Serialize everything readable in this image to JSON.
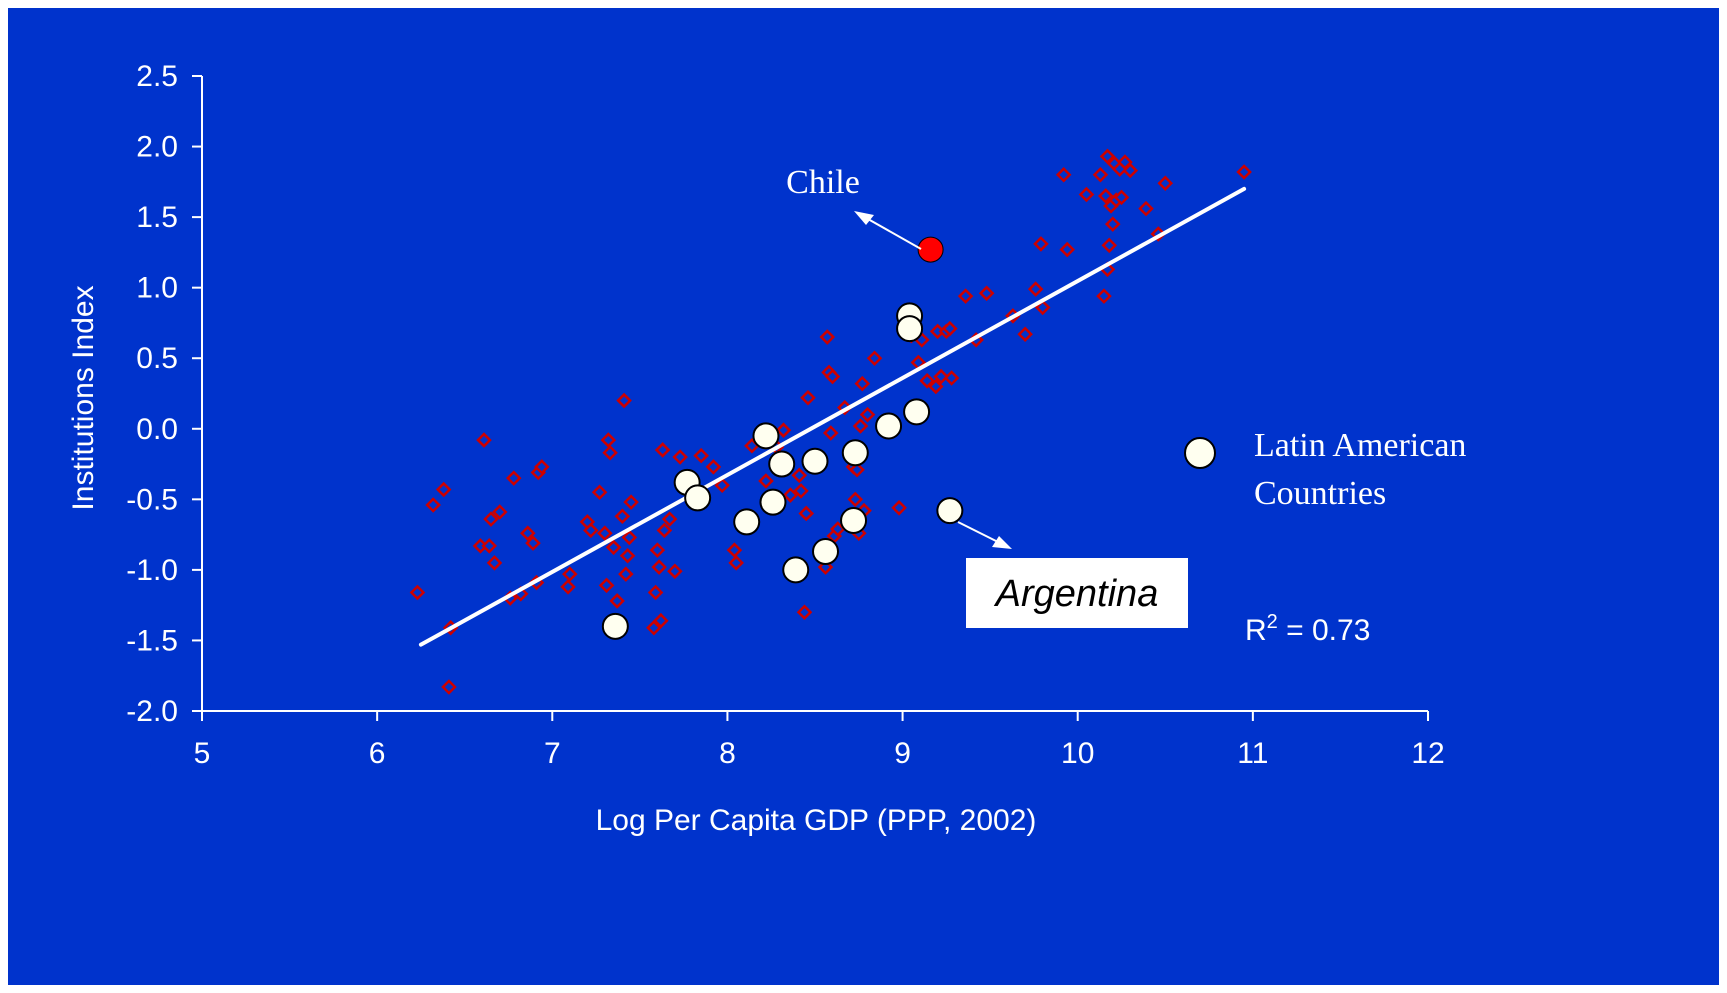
{
  "colors": {
    "background": "#0033cc",
    "axis": "#ffffff",
    "world_marker_stroke": "#cc0000",
    "world_marker_fill": "#0033cc",
    "latam_fill": "#fffff0",
    "chile_fill": "#ff0000",
    "trend": "#ffffff"
  },
  "legend": {
    "line1": "Latin American",
    "line2": "Countries"
  },
  "annotations": {
    "chile": "Chile",
    "argentina": "Argentina",
    "r2_prefix": "R",
    "r2_sup": "2",
    "r2_value": " = 0.73"
  },
  "chart_data": {
    "type": "scatter",
    "title": "",
    "xlabel": "Log Per Capita GDP (PPP, 2002)",
    "ylabel": "Institutions Index",
    "xlim": [
      5,
      12
    ],
    "ylim": [
      -2.0,
      2.5
    ],
    "xticks": [
      "5",
      "6",
      "7",
      "8",
      "9",
      "10",
      "11",
      "12"
    ],
    "yticks": [
      "2.5",
      "2.0",
      "1.5",
      "1.0",
      "0.5",
      "0.0",
      "-0.5",
      "-1.0",
      "-1.5",
      "-2.0"
    ],
    "grid": false,
    "trendline": {
      "x": [
        6.25,
        10.95
      ],
      "y": [
        -1.53,
        1.7
      ]
    },
    "series": [
      {
        "marker": "diamond",
        "points": [
          [
            6.23,
            -1.16
          ],
          [
            6.32,
            -0.54
          ],
          [
            6.38,
            -0.43
          ],
          [
            6.42,
            -1.41
          ],
          [
            6.41,
            -1.83
          ],
          [
            6.59,
            -0.83
          ],
          [
            6.61,
            -0.08
          ],
          [
            6.64,
            -0.83
          ],
          [
            6.65,
            -0.64
          ],
          [
            6.67,
            -0.95
          ],
          [
            6.7,
            -0.59
          ],
          [
            6.76,
            -1.2
          ],
          [
            6.78,
            -0.35
          ],
          [
            6.82,
            -1.17
          ],
          [
            6.86,
            -0.74
          ],
          [
            6.89,
            -0.81
          ],
          [
            6.91,
            -1.09
          ],
          [
            6.92,
            -0.31
          ],
          [
            6.94,
            -0.27
          ],
          [
            7.09,
            -1.12
          ],
          [
            7.1,
            -1.03
          ],
          [
            7.2,
            -0.66
          ],
          [
            7.22,
            -0.72
          ],
          [
            7.27,
            -0.45
          ],
          [
            7.3,
            -0.74
          ],
          [
            7.31,
            -1.11
          ],
          [
            7.32,
            -0.08
          ],
          [
            7.33,
            -0.17
          ],
          [
            7.35,
            -0.84
          ],
          [
            7.37,
            -1.22
          ],
          [
            7.4,
            -0.62
          ],
          [
            7.41,
            0.2
          ],
          [
            7.42,
            -1.03
          ],
          [
            7.43,
            -0.9
          ],
          [
            7.44,
            -0.77
          ],
          [
            7.45,
            -0.52
          ],
          [
            7.58,
            -1.41
          ],
          [
            7.59,
            -1.16
          ],
          [
            7.6,
            -0.86
          ],
          [
            7.61,
            -0.98
          ],
          [
            7.62,
            -1.36
          ],
          [
            7.63,
            -0.15
          ],
          [
            7.64,
            -0.72
          ],
          [
            7.67,
            -0.64
          ],
          [
            7.7,
            -1.01
          ],
          [
            7.73,
            -0.2
          ],
          [
            7.85,
            -0.19
          ],
          [
            7.92,
            -0.27
          ],
          [
            7.97,
            -0.4
          ],
          [
            8.04,
            -0.86
          ],
          [
            8.05,
            -0.95
          ],
          [
            8.14,
            -0.12
          ],
          [
            8.22,
            -0.37
          ],
          [
            8.28,
            -0.13
          ],
          [
            8.32,
            -0.01
          ],
          [
            8.36,
            -0.47
          ],
          [
            8.41,
            -0.33
          ],
          [
            8.42,
            -0.44
          ],
          [
            8.44,
            -1.3
          ],
          [
            8.45,
            -0.6
          ],
          [
            8.46,
            0.22
          ],
          [
            8.56,
            -0.98
          ],
          [
            8.57,
            0.65
          ],
          [
            8.58,
            0.4
          ],
          [
            8.59,
            -0.03
          ],
          [
            8.6,
            0.37
          ],
          [
            8.61,
            -0.76
          ],
          [
            8.63,
            -0.71
          ],
          [
            8.67,
            0.15
          ],
          [
            8.7,
            -0.64
          ],
          [
            8.72,
            -0.27
          ],
          [
            8.73,
            -0.5
          ],
          [
            8.74,
            -0.29
          ],
          [
            8.75,
            -0.74
          ],
          [
            8.76,
            0.02
          ],
          [
            8.77,
            0.32
          ],
          [
            8.78,
            -0.58
          ],
          [
            8.8,
            0.1
          ],
          [
            8.84,
            0.5
          ],
          [
            8.98,
            -0.56
          ],
          [
            9.02,
            0.77
          ],
          [
            9.05,
            0.66
          ],
          [
            9.09,
            0.47
          ],
          [
            9.11,
            0.63
          ],
          [
            9.14,
            0.34
          ],
          [
            9.19,
            0.3
          ],
          [
            9.2,
            0.69
          ],
          [
            9.22,
            0.37
          ],
          [
            9.25,
            0.69
          ],
          [
            9.27,
            0.71
          ],
          [
            9.28,
            0.36
          ],
          [
            9.36,
            0.94
          ],
          [
            9.42,
            0.63
          ],
          [
            9.48,
            0.96
          ],
          [
            9.63,
            0.8
          ],
          [
            9.7,
            0.67
          ],
          [
            9.76,
            0.99
          ],
          [
            9.79,
            1.31
          ],
          [
            9.8,
            0.86
          ],
          [
            9.92,
            1.8
          ],
          [
            9.94,
            1.27
          ],
          [
            10.05,
            1.66
          ],
          [
            10.13,
            1.8
          ],
          [
            10.15,
            0.94
          ],
          [
            10.16,
            1.65
          ],
          [
            10.17,
            1.13
          ],
          [
            10.18,
            1.3
          ],
          [
            10.19,
            1.58
          ],
          [
            10.2,
            1.45
          ],
          [
            10.21,
            1.88
          ],
          [
            10.22,
            1.62
          ],
          [
            10.25,
            1.64
          ],
          [
            10.27,
            1.89
          ],
          [
            10.3,
            1.83
          ],
          [
            10.39,
            1.56
          ],
          [
            10.46,
            1.38
          ],
          [
            10.5,
            1.74
          ],
          [
            10.95,
            1.82
          ],
          [
            10.17,
            1.93
          ],
          [
            10.24,
            1.84
          ]
        ]
      },
      {
        "name": "Latin American Countries",
        "marker": "circle",
        "points": [
          [
            7.36,
            -1.4
          ],
          [
            7.77,
            -0.38
          ],
          [
            7.83,
            -0.49
          ],
          [
            8.11,
            -0.66
          ],
          [
            8.22,
            -0.05
          ],
          [
            8.26,
            -0.52
          ],
          [
            8.31,
            -0.25
          ],
          [
            8.39,
            -1.0
          ],
          [
            8.5,
            -0.23
          ],
          [
            8.56,
            -0.87
          ],
          [
            8.72,
            -0.65
          ],
          [
            8.73,
            -0.17
          ],
          [
            8.92,
            0.02
          ],
          [
            9.04,
            0.8
          ],
          [
            9.04,
            0.71
          ],
          [
            9.08,
            0.12
          ],
          [
            9.27,
            -0.58
          ]
        ]
      },
      {
        "marker": "circle",
        "points": [
          [
            9.16,
            1.27
          ]
        ]
      }
    ]
  }
}
